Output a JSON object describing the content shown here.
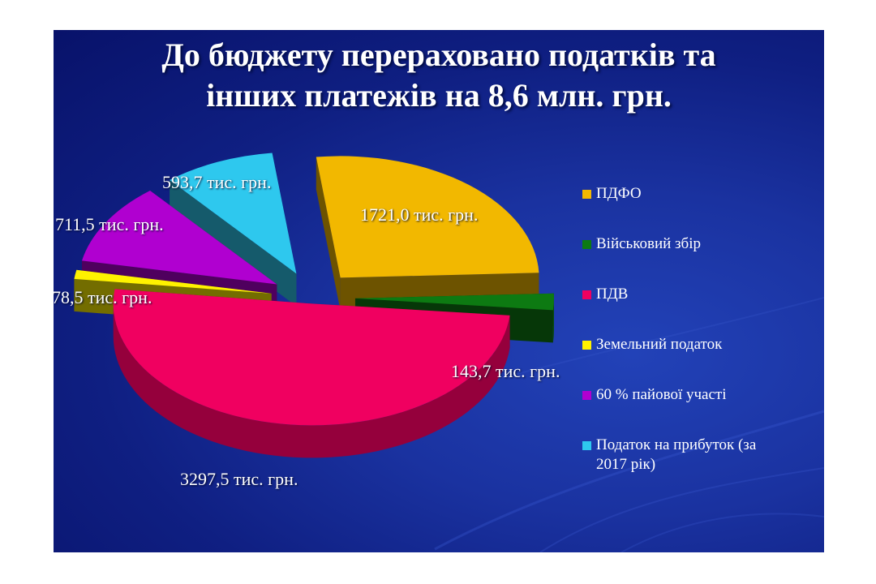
{
  "slide": {
    "title_line1": "До бюджету перераховано податків та",
    "title_line2": "інших платежів на  8,6 млн. грн."
  },
  "chart_data": {
    "type": "pie",
    "title": "До бюджету перераховано податків та інших платежів на  8,6 млн. грн.",
    "unit": "тис. грн.",
    "legend_position": "right",
    "slices": [
      {
        "name": "ПДФО",
        "value": 1721.0,
        "label": "1721,0 тис. грн.",
        "color": "#f2b800"
      },
      {
        "name": "Військовий збір",
        "value": 143.7,
        "label": "143,7 тис. грн.",
        "color": "#0d7a12"
      },
      {
        "name": "ПДВ",
        "value": 3297.5,
        "label": "3297,5 тис. грн.",
        "color": "#f00060"
      },
      {
        "name": "Земельний податок",
        "value": 78.5,
        "label": "78,5 тис. грн.",
        "color": "#fff200"
      },
      {
        "name": "60 % пайової участі",
        "value": 711.5,
        "label": "711,5 тис. грн.",
        "color": "#b000d0"
      },
      {
        "name": "Податок на прибуток (за 2017 рік)",
        "value": 593.7,
        "label": "593,7 тис. грн.",
        "color": "#2ec8ee"
      }
    ]
  }
}
